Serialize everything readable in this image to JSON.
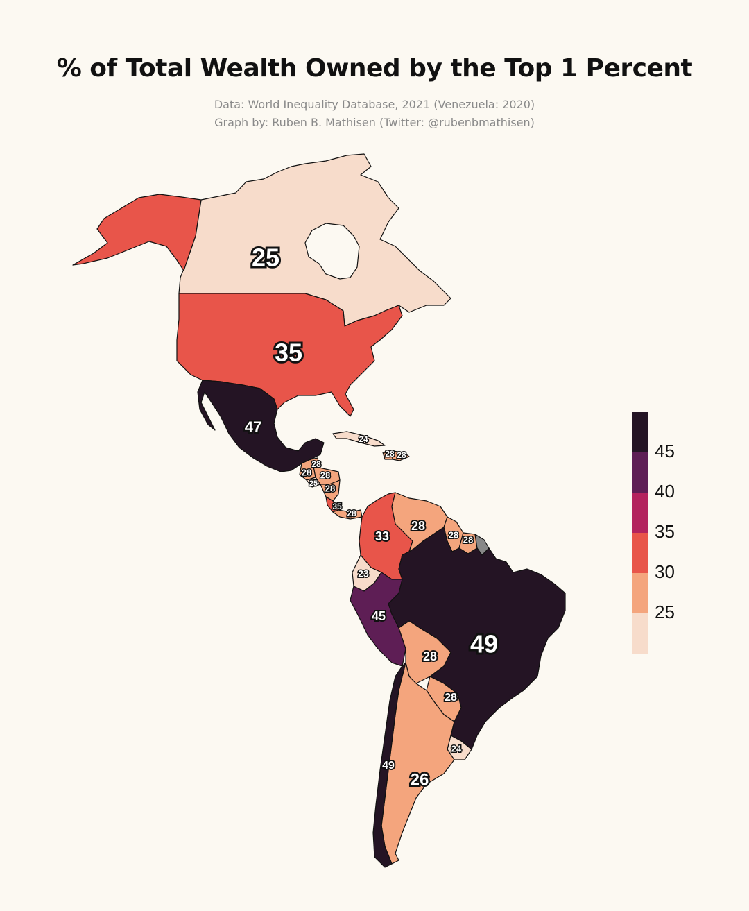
{
  "title": "% of Total Wealth Owned by the Top 1 Percent",
  "subtitle_line1": "Data: World Inequality Database, 2021 (Venezuela: 2020)",
  "subtitle_line2": "Graph by: Ruben B. Mathisen (Twitter: @rubenbmathisen)",
  "colors": {
    "c25": "#f7dccb",
    "c30": "#f4a57d",
    "c35": "#e8554a",
    "c40": "#b3235e",
    "c45": "#5e1e55",
    "c49": "#241424",
    "nodata": "#888888"
  },
  "legend": {
    "ticks": [
      "45",
      "40",
      "35",
      "30",
      "25"
    ]
  },
  "regions": [
    {
      "name": "Canada",
      "value": 25,
      "label": "25"
    },
    {
      "name": "United States",
      "value": 35,
      "label": "35"
    },
    {
      "name": "Mexico",
      "value": 47,
      "label": "47"
    },
    {
      "name": "Cuba",
      "value": 24,
      "label": "24"
    },
    {
      "name": "Dominican Republic",
      "value": 28,
      "label": "28"
    },
    {
      "name": "Haiti",
      "value": 28,
      "label": "28"
    },
    {
      "name": "Belize",
      "value": 28,
      "label": "28"
    },
    {
      "name": "Guatemala",
      "value": 28,
      "label": "28"
    },
    {
      "name": "Honduras",
      "value": 28,
      "label": "28"
    },
    {
      "name": "El Salvador",
      "value": 25,
      "label": "25"
    },
    {
      "name": "Nicaragua",
      "value": 28,
      "label": "28"
    },
    {
      "name": "Costa Rica",
      "value": 35,
      "label": "35"
    },
    {
      "name": "Panama",
      "value": 28,
      "label": "28"
    },
    {
      "name": "Colombia",
      "value": 33,
      "label": "33"
    },
    {
      "name": "Venezuela",
      "value": 28,
      "label": "28"
    },
    {
      "name": "Guyana",
      "value": 28,
      "label": "28"
    },
    {
      "name": "Suriname",
      "value": 28,
      "label": "28"
    },
    {
      "name": "Ecuador",
      "value": 23,
      "label": "23"
    },
    {
      "name": "Peru",
      "value": 45,
      "label": "45"
    },
    {
      "name": "Brazil",
      "value": 49,
      "label": "49"
    },
    {
      "name": "Bolivia",
      "value": 28,
      "label": "28"
    },
    {
      "name": "Paraguay",
      "value": 28,
      "label": "28"
    },
    {
      "name": "Uruguay",
      "value": 24,
      "label": "24"
    },
    {
      "name": "Chile",
      "value": 49,
      "label": "49"
    },
    {
      "name": "Argentina",
      "value": 26,
      "label": "26"
    }
  ]
}
